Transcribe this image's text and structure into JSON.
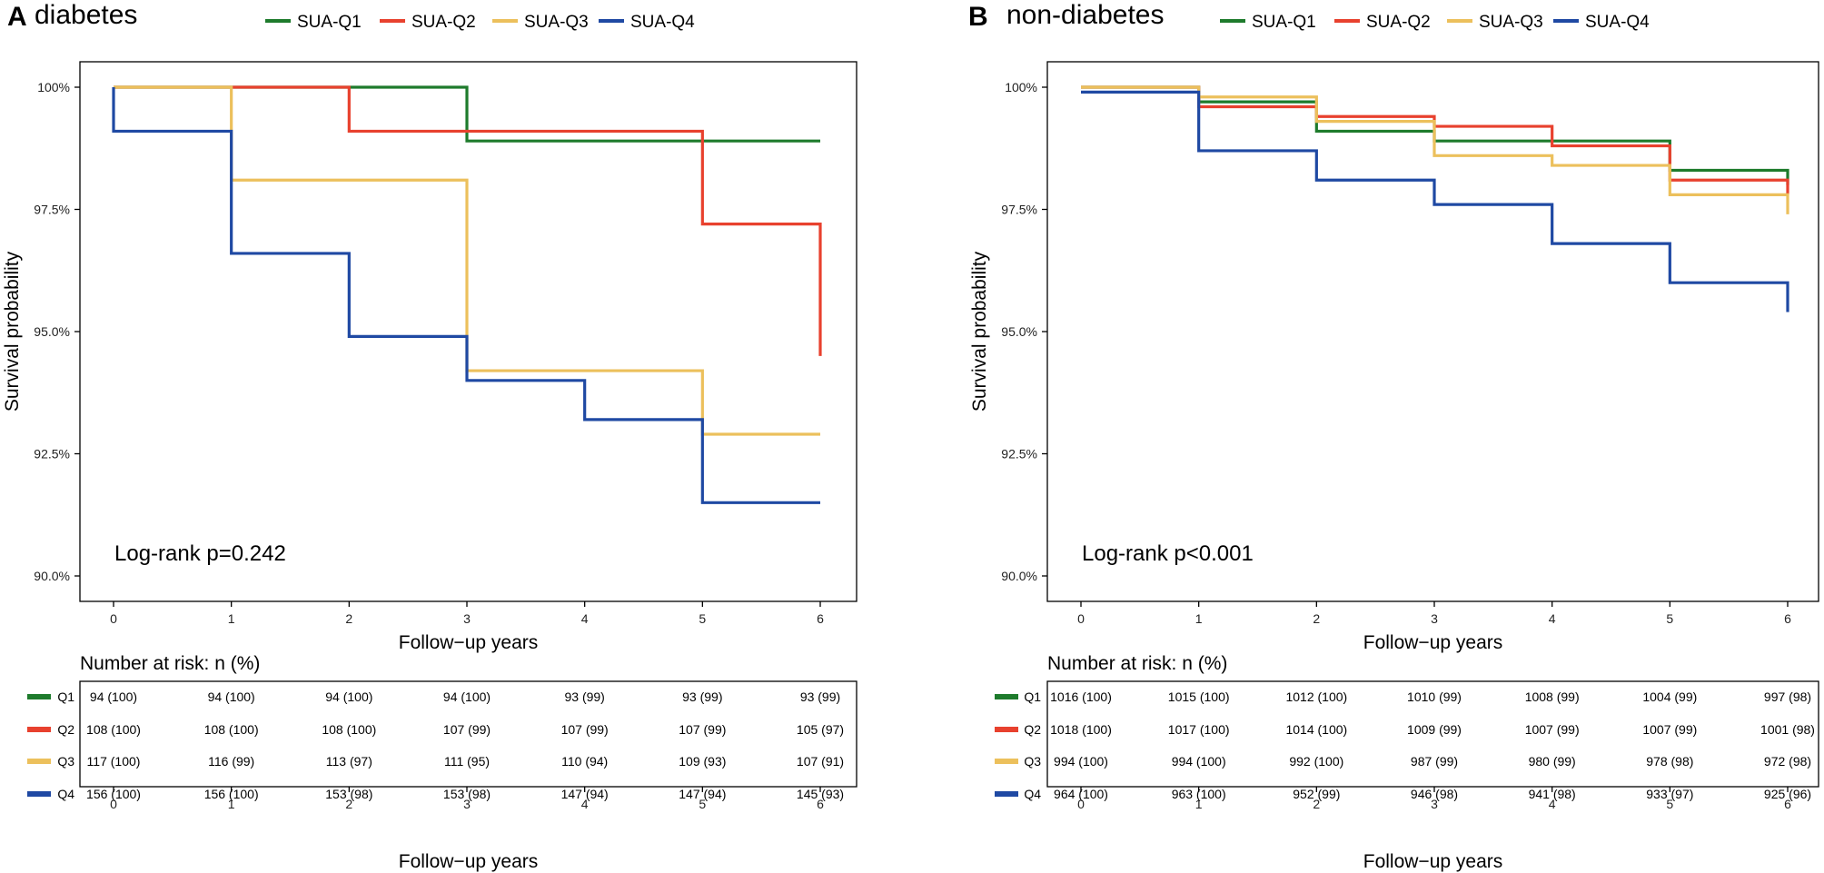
{
  "colors": {
    "Q1": "#1e7b2c",
    "Q2": "#e8412e",
    "Q3": "#ecc05c",
    "Q4": "#1f49a3"
  },
  "chart_data": [
    {
      "type": "line",
      "step": true,
      "panel_label": "A",
      "title": "diabetes",
      "legend": [
        "SUA-Q1",
        "SUA-Q2",
        "SUA-Q3",
        "SUA-Q4"
      ],
      "legend_position": "top",
      "xlabel": "Follow−up years",
      "ylabel": "Survival probability",
      "xlim": [
        0,
        6
      ],
      "ylim": [
        89.5,
        100.5
      ],
      "x_ticks": [
        "0",
        "1",
        "2",
        "3",
        "4",
        "5",
        "6"
      ],
      "y_ticks": [
        {
          "value": 100,
          "label": "100%"
        },
        {
          "value": 97.5,
          "label": "97.5%"
        },
        {
          "value": 95,
          "label": "95.0%"
        },
        {
          "value": 92.5,
          "label": "92.5%"
        },
        {
          "value": 90,
          "label": "90.0%"
        }
      ],
      "annotation": "Log-rank p=0.242",
      "series": [
        {
          "name": "SUA-Q1",
          "key": "Q1",
          "x": [
            0,
            3,
            6
          ],
          "y": [
            100,
            98.9,
            98.9
          ]
        },
        {
          "name": "SUA-Q2",
          "key": "Q2",
          "x": [
            0,
            2,
            5,
            6,
            6
          ],
          "y": [
            100,
            99.1,
            97.2,
            97.2,
            94.5
          ]
        },
        {
          "name": "SUA-Q3",
          "key": "Q3",
          "x": [
            0,
            1,
            3,
            5,
            6
          ],
          "y": [
            100,
            98.1,
            94.2,
            92.9,
            92.9
          ]
        },
        {
          "name": "SUA-Q4",
          "key": "Q4",
          "x": [
            0,
            0,
            1,
            2,
            3,
            4,
            5,
            6
          ],
          "y": [
            100,
            99.1,
            96.6,
            94.9,
            94.0,
            93.2,
            91.5,
            91.5
          ]
        }
      ],
      "risk_table": {
        "title": "Number at risk: n (%)",
        "xlabel": "Follow−up years",
        "rows": [
          {
            "label": "Q1",
            "key": "Q1",
            "values": [
              "94 (100)",
              "94 (100)",
              "94 (100)",
              "94 (100)",
              "93 (99)",
              "93 (99)",
              "93 (99)"
            ]
          },
          {
            "label": "Q2",
            "key": "Q2",
            "values": [
              "108 (100)",
              "108 (100)",
              "108 (100)",
              "107 (99)",
              "107 (99)",
              "107 (99)",
              "105 (97)"
            ]
          },
          {
            "label": "Q3",
            "key": "Q3",
            "values": [
              "117 (100)",
              "116 (99)",
              "113 (97)",
              "111 (95)",
              "110 (94)",
              "109 (93)",
              "107 (91)"
            ]
          },
          {
            "label": "Q4",
            "key": "Q4",
            "values": [
              "156 (100)",
              "156 (100)",
              "153 (98)",
              "153 (98)",
              "147 (94)",
              "147 (94)",
              "145 (93)"
            ]
          }
        ]
      }
    },
    {
      "type": "line",
      "step": true,
      "panel_label": "B",
      "title": "non-diabetes",
      "legend": [
        "SUA-Q1",
        "SUA-Q2",
        "SUA-Q3",
        "SUA-Q4"
      ],
      "legend_position": "top",
      "xlabel": "Follow−up years",
      "ylabel": "Survival probability",
      "xlim": [
        0,
        6
      ],
      "ylim": [
        89.5,
        100.5
      ],
      "x_ticks": [
        "0",
        "1",
        "2",
        "3",
        "4",
        "5",
        "6"
      ],
      "y_ticks": [
        {
          "value": 100,
          "label": "100%"
        },
        {
          "value": 97.5,
          "label": "97.5%"
        },
        {
          "value": 95,
          "label": "95.0%"
        },
        {
          "value": 92.5,
          "label": "92.5%"
        },
        {
          "value": 90,
          "label": "90.0%"
        }
      ],
      "annotation": "Log-rank p<0.001",
      "series": [
        {
          "name": "SUA-Q1",
          "key": "Q1",
          "x": [
            0,
            1,
            2,
            3,
            4,
            5,
            6,
            6
          ],
          "y": [
            100,
            99.7,
            99.1,
            98.9,
            98.9,
            98.3,
            98.3,
            98.0
          ]
        },
        {
          "name": "SUA-Q2",
          "key": "Q2",
          "x": [
            0,
            1,
            2,
            3,
            4,
            5,
            6,
            6
          ],
          "y": [
            100,
            99.6,
            99.4,
            99.2,
            98.8,
            98.1,
            98.1,
            97.8
          ]
        },
        {
          "name": "SUA-Q3",
          "key": "Q3",
          "x": [
            0,
            1,
            2,
            3,
            4,
            5,
            6,
            6
          ],
          "y": [
            100,
            99.8,
            99.3,
            98.6,
            98.4,
            97.8,
            97.8,
            97.4
          ]
        },
        {
          "name": "SUA-Q4",
          "key": "Q4",
          "x": [
            0,
            1,
            2,
            3,
            4,
            5,
            6,
            6
          ],
          "y": [
            99.9,
            98.7,
            98.1,
            97.6,
            96.8,
            96.0,
            96.0,
            95.4
          ]
        }
      ],
      "risk_table": {
        "title": "Number at risk: n (%)",
        "xlabel": "Follow−up years",
        "rows": [
          {
            "label": "Q1",
            "key": "Q1",
            "values": [
              "1016 (100)",
              "1015 (100)",
              "1012 (100)",
              "1010 (99)",
              "1008 (99)",
              "1004 (99)",
              "997 (98)"
            ]
          },
          {
            "label": "Q2",
            "key": "Q2",
            "values": [
              "1018 (100)",
              "1017 (100)",
              "1014 (100)",
              "1009 (99)",
              "1007 (99)",
              "1007 (99)",
              "1001 (98)"
            ]
          },
          {
            "label": "Q3",
            "key": "Q3",
            "values": [
              "994 (100)",
              "994 (100)",
              "992 (100)",
              "987 (99)",
              "980 (99)",
              "978 (98)",
              "972 (98)"
            ]
          },
          {
            "label": "Q4",
            "key": "Q4",
            "values": [
              "964 (100)",
              "963 (100)",
              "952 (99)",
              "946 (98)",
              "941 (98)",
              "933 (97)",
              "925 (96)"
            ]
          }
        ]
      }
    }
  ]
}
